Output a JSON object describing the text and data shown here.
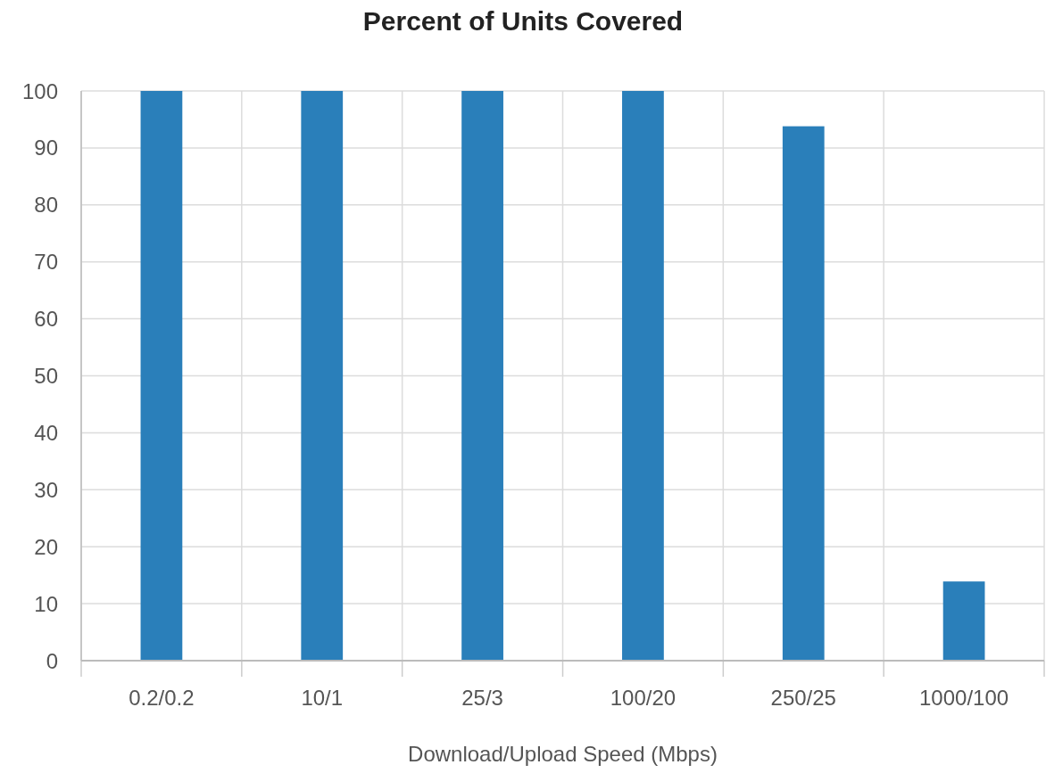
{
  "chart_data": {
    "type": "bar",
    "title": "Percent of Units Covered",
    "xlabel": "Download/Upload Speed (Mbps)",
    "categories": [
      "0.2/0.2",
      "10/1",
      "25/3",
      "100/20",
      "250/25",
      "1000/100"
    ],
    "values": [
      100,
      100,
      100,
      100,
      93.8,
      13.9
    ],
    "color": "#2a7fba",
    "ylim": [
      0,
      100
    ],
    "yticks": [
      0,
      10,
      20,
      30,
      40,
      50,
      60,
      70,
      80,
      90,
      100
    ],
    "grid": true
  }
}
